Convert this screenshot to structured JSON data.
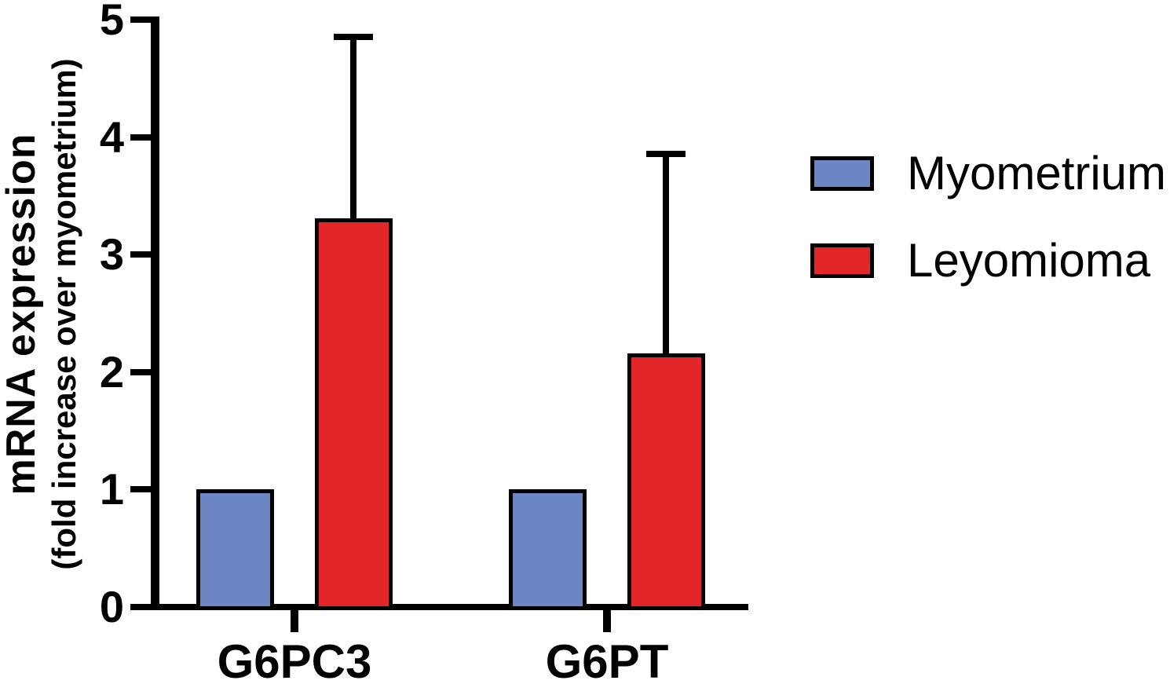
{
  "chart_data": {
    "type": "bar",
    "title": "",
    "ylabel_line1": "mRNA expression",
    "ylabel_line2": "(fold increase over myometrium)",
    "xlabel": "",
    "categories": [
      "G6PC3",
      "G6PT"
    ],
    "series": [
      {
        "name": "Myometrium",
        "color": "#6B86C3",
        "values": [
          1.0,
          1.0
        ],
        "error_up": [
          0,
          0
        ]
      },
      {
        "name": "Leyomioma",
        "color": "#E32729",
        "values": [
          3.31,
          2.16
        ],
        "error_up": [
          1.54,
          1.7
        ]
      }
    ],
    "ylim": [
      0,
      5
    ],
    "yticks": [
      "0",
      "1",
      "2",
      "3",
      "4",
      "5"
    ],
    "grid": false,
    "legend_position": "right",
    "axis_color": "#000000",
    "error_bars": "upper SD whiskers with caps on Leyomioma bars only"
  }
}
